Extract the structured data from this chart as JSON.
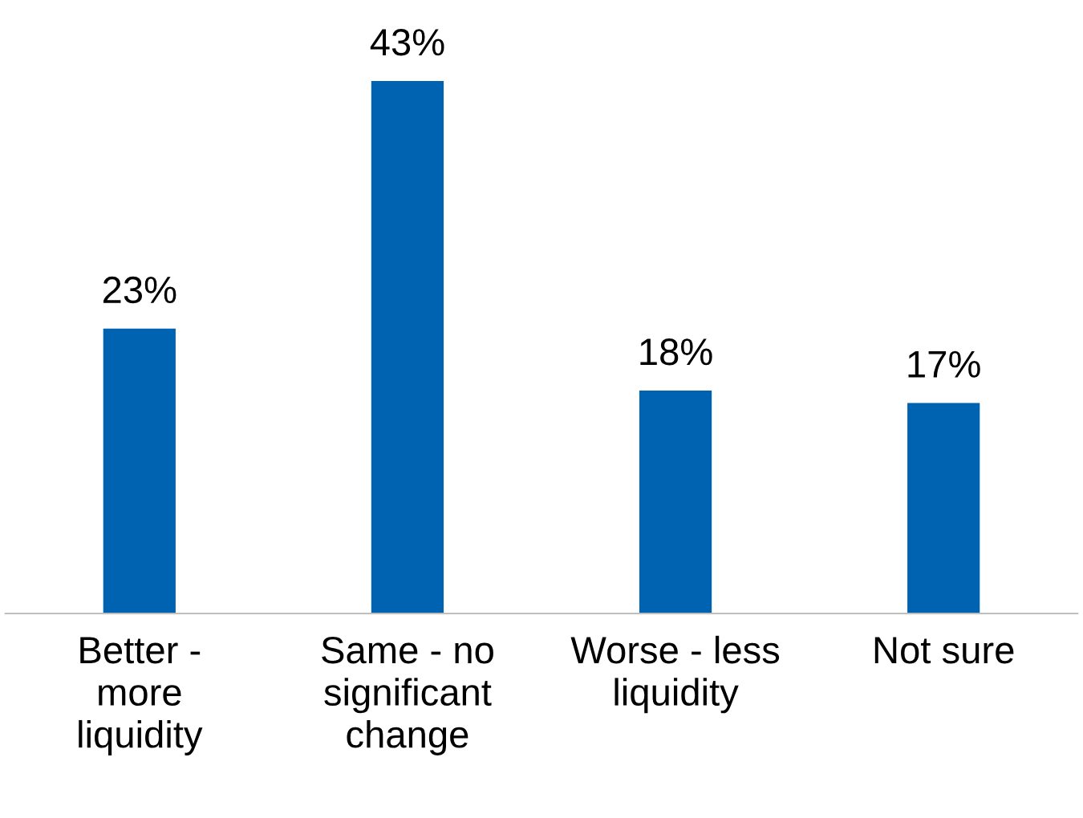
{
  "chart_data": {
    "type": "bar",
    "categories": [
      "Better -\nmore\nliquidity",
      "Same - no\nsignificant\nchange",
      "Worse - less\nliquidity",
      "Not sure"
    ],
    "values": [
      23,
      43,
      18,
      17
    ],
    "color": "#0063b1",
    "value_labels": [
      "23%",
      "43%",
      "18%",
      "17%"
    ],
    "grid": false,
    "legend": false
  }
}
